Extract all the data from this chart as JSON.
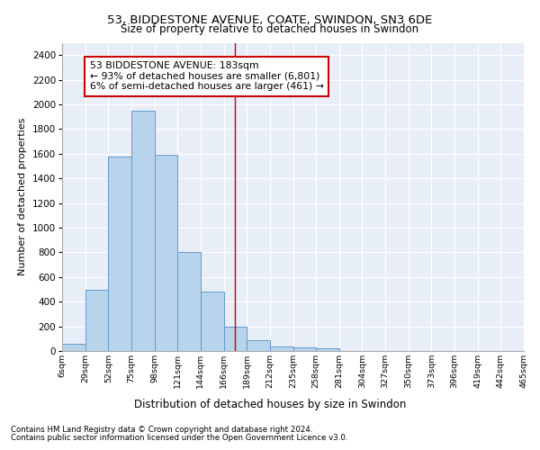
{
  "title1": "53, BIDDESTONE AVENUE, COATE, SWINDON, SN3 6DE",
  "title2": "Size of property relative to detached houses in Swindon",
  "xlabel": "Distribution of detached houses by size in Swindon",
  "ylabel": "Number of detached properties",
  "bar_values": [
    60,
    500,
    1580,
    1950,
    1590,
    800,
    480,
    200,
    90,
    35,
    30,
    20,
    0,
    0,
    0,
    0,
    0,
    0,
    0,
    0
  ],
  "bar_labels": [
    "6sqm",
    "29sqm",
    "52sqm",
    "75sqm",
    "98sqm",
    "121sqm",
    "144sqm",
    "166sqm",
    "189sqm",
    "212sqm",
    "235sqm",
    "258sqm",
    "281sqm",
    "304sqm",
    "327sqm",
    "350sqm",
    "373sqm",
    "396sqm",
    "419sqm",
    "442sqm",
    "465sqm"
  ],
  "bar_color": "#b8d4ec",
  "bar_edge_color": "#6699cc",
  "bg_color": "#e8eef8",
  "grid_color": "#ffffff",
  "vline_x": 7.5,
  "vline_color": "#cc0000",
  "annotation_text": "53 BIDDESTONE AVENUE: 183sqm\n← 93% of detached houses are smaller (6,801)\n6% of semi-detached houses are larger (461) →",
  "annotation_box_color": "#ffffff",
  "annotation_border_color": "#cc0000",
  "footer1": "Contains HM Land Registry data © Crown copyright and database right 2024.",
  "footer2": "Contains public sector information licensed under the Open Government Licence v3.0.",
  "ylim": [
    0,
    2500
  ],
  "yticks": [
    0,
    200,
    400,
    600,
    800,
    1000,
    1200,
    1400,
    1600,
    1800,
    2000,
    2200,
    2400
  ]
}
